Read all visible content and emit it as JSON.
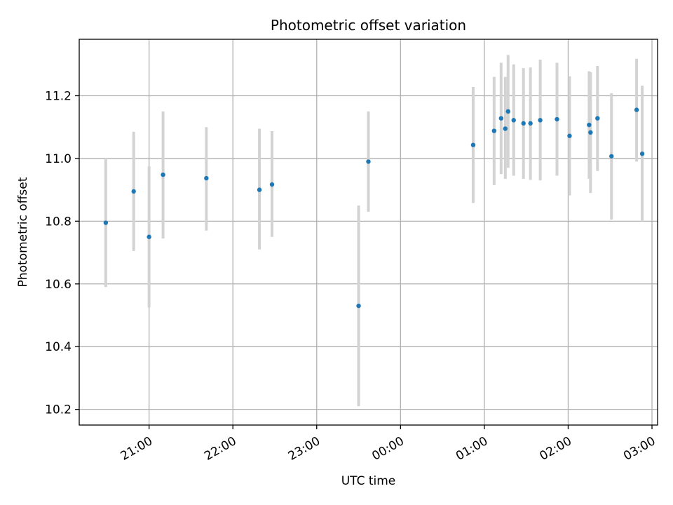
{
  "chart_data": {
    "type": "scatter",
    "title": "Photometric offset variation",
    "xlabel": "UTC time",
    "ylabel": "Photometric offset",
    "x_tick_labels": [
      "21:00",
      "22:00",
      "23:00",
      "00:00",
      "01:00",
      "02:00",
      "03:00"
    ],
    "y_tick_labels": [
      "10.2",
      "10.4",
      "10.6",
      "10.8",
      "11.0",
      "11.2"
    ],
    "ylim": [
      10.15,
      11.38
    ],
    "xlim_hours_utc": [
      "20:10",
      "03:04"
    ],
    "grid": true,
    "colors": {
      "point": "#1f77b4",
      "errorbar": "#d3d3d3",
      "grid": "#b0b0b0"
    },
    "series": [
      {
        "points": [
          {
            "x": "20:29",
            "y": 10.795,
            "y_low": 10.59,
            "y_high": 11.0
          },
          {
            "x": "20:49",
            "y": 10.895,
            "y_low": 10.705,
            "y_high": 11.085
          },
          {
            "x": "21:00",
            "y": 10.75,
            "y_low": 10.525,
            "y_high": 10.975
          },
          {
            "x": "21:10",
            "y": 10.948,
            "y_low": 10.745,
            "y_high": 11.15
          },
          {
            "x": "21:41",
            "y": 10.937,
            "y_low": 10.77,
            "y_high": 11.1
          },
          {
            "x": "22:19",
            "y": 10.9,
            "y_low": 10.71,
            "y_high": 11.095
          },
          {
            "x": "22:28",
            "y": 10.917,
            "y_low": 10.75,
            "y_high": 11.087
          },
          {
            "x": "23:30",
            "y": 10.53,
            "y_low": 10.21,
            "y_high": 10.85
          },
          {
            "x": "23:37",
            "y": 10.99,
            "y_low": 10.83,
            "y_high": 11.15
          },
          {
            "x": "00:52",
            "y": 11.043,
            "y_low": 10.858,
            "y_high": 11.228
          },
          {
            "x": "01:07",
            "y": 11.088,
            "y_low": 10.915,
            "y_high": 11.26
          },
          {
            "x": "01:12",
            "y": 11.128,
            "y_low": 10.95,
            "y_high": 11.305
          },
          {
            "x": "01:15",
            "y": 11.095,
            "y_low": 10.935,
            "y_high": 11.26
          },
          {
            "x": "01:17",
            "y": 11.15,
            "y_low": 10.97,
            "y_high": 11.33
          },
          {
            "x": "01:21",
            "y": 11.122,
            "y_low": 10.945,
            "y_high": 11.3
          },
          {
            "x": "01:28",
            "y": 11.112,
            "y_low": 10.935,
            "y_high": 11.288
          },
          {
            "x": "01:33",
            "y": 11.112,
            "y_low": 10.932,
            "y_high": 11.29
          },
          {
            "x": "01:40",
            "y": 11.122,
            "y_low": 10.93,
            "y_high": 11.315
          },
          {
            "x": "01:52",
            "y": 11.125,
            "y_low": 10.945,
            "y_high": 11.305
          },
          {
            "x": "02:01",
            "y": 11.072,
            "y_low": 10.882,
            "y_high": 11.262
          },
          {
            "x": "02:15",
            "y": 11.107,
            "y_low": 10.935,
            "y_high": 11.278
          },
          {
            "x": "02:16",
            "y": 11.083,
            "y_low": 10.89,
            "y_high": 11.275
          },
          {
            "x": "02:21",
            "y": 11.128,
            "y_low": 10.96,
            "y_high": 11.295
          },
          {
            "x": "02:31",
            "y": 11.007,
            "y_low": 10.805,
            "y_high": 11.208
          },
          {
            "x": "02:49",
            "y": 11.155,
            "y_low": 10.99,
            "y_high": 11.318
          },
          {
            "x": "02:53",
            "y": 11.015,
            "y_low": 10.8,
            "y_high": 11.232
          }
        ]
      }
    ]
  }
}
